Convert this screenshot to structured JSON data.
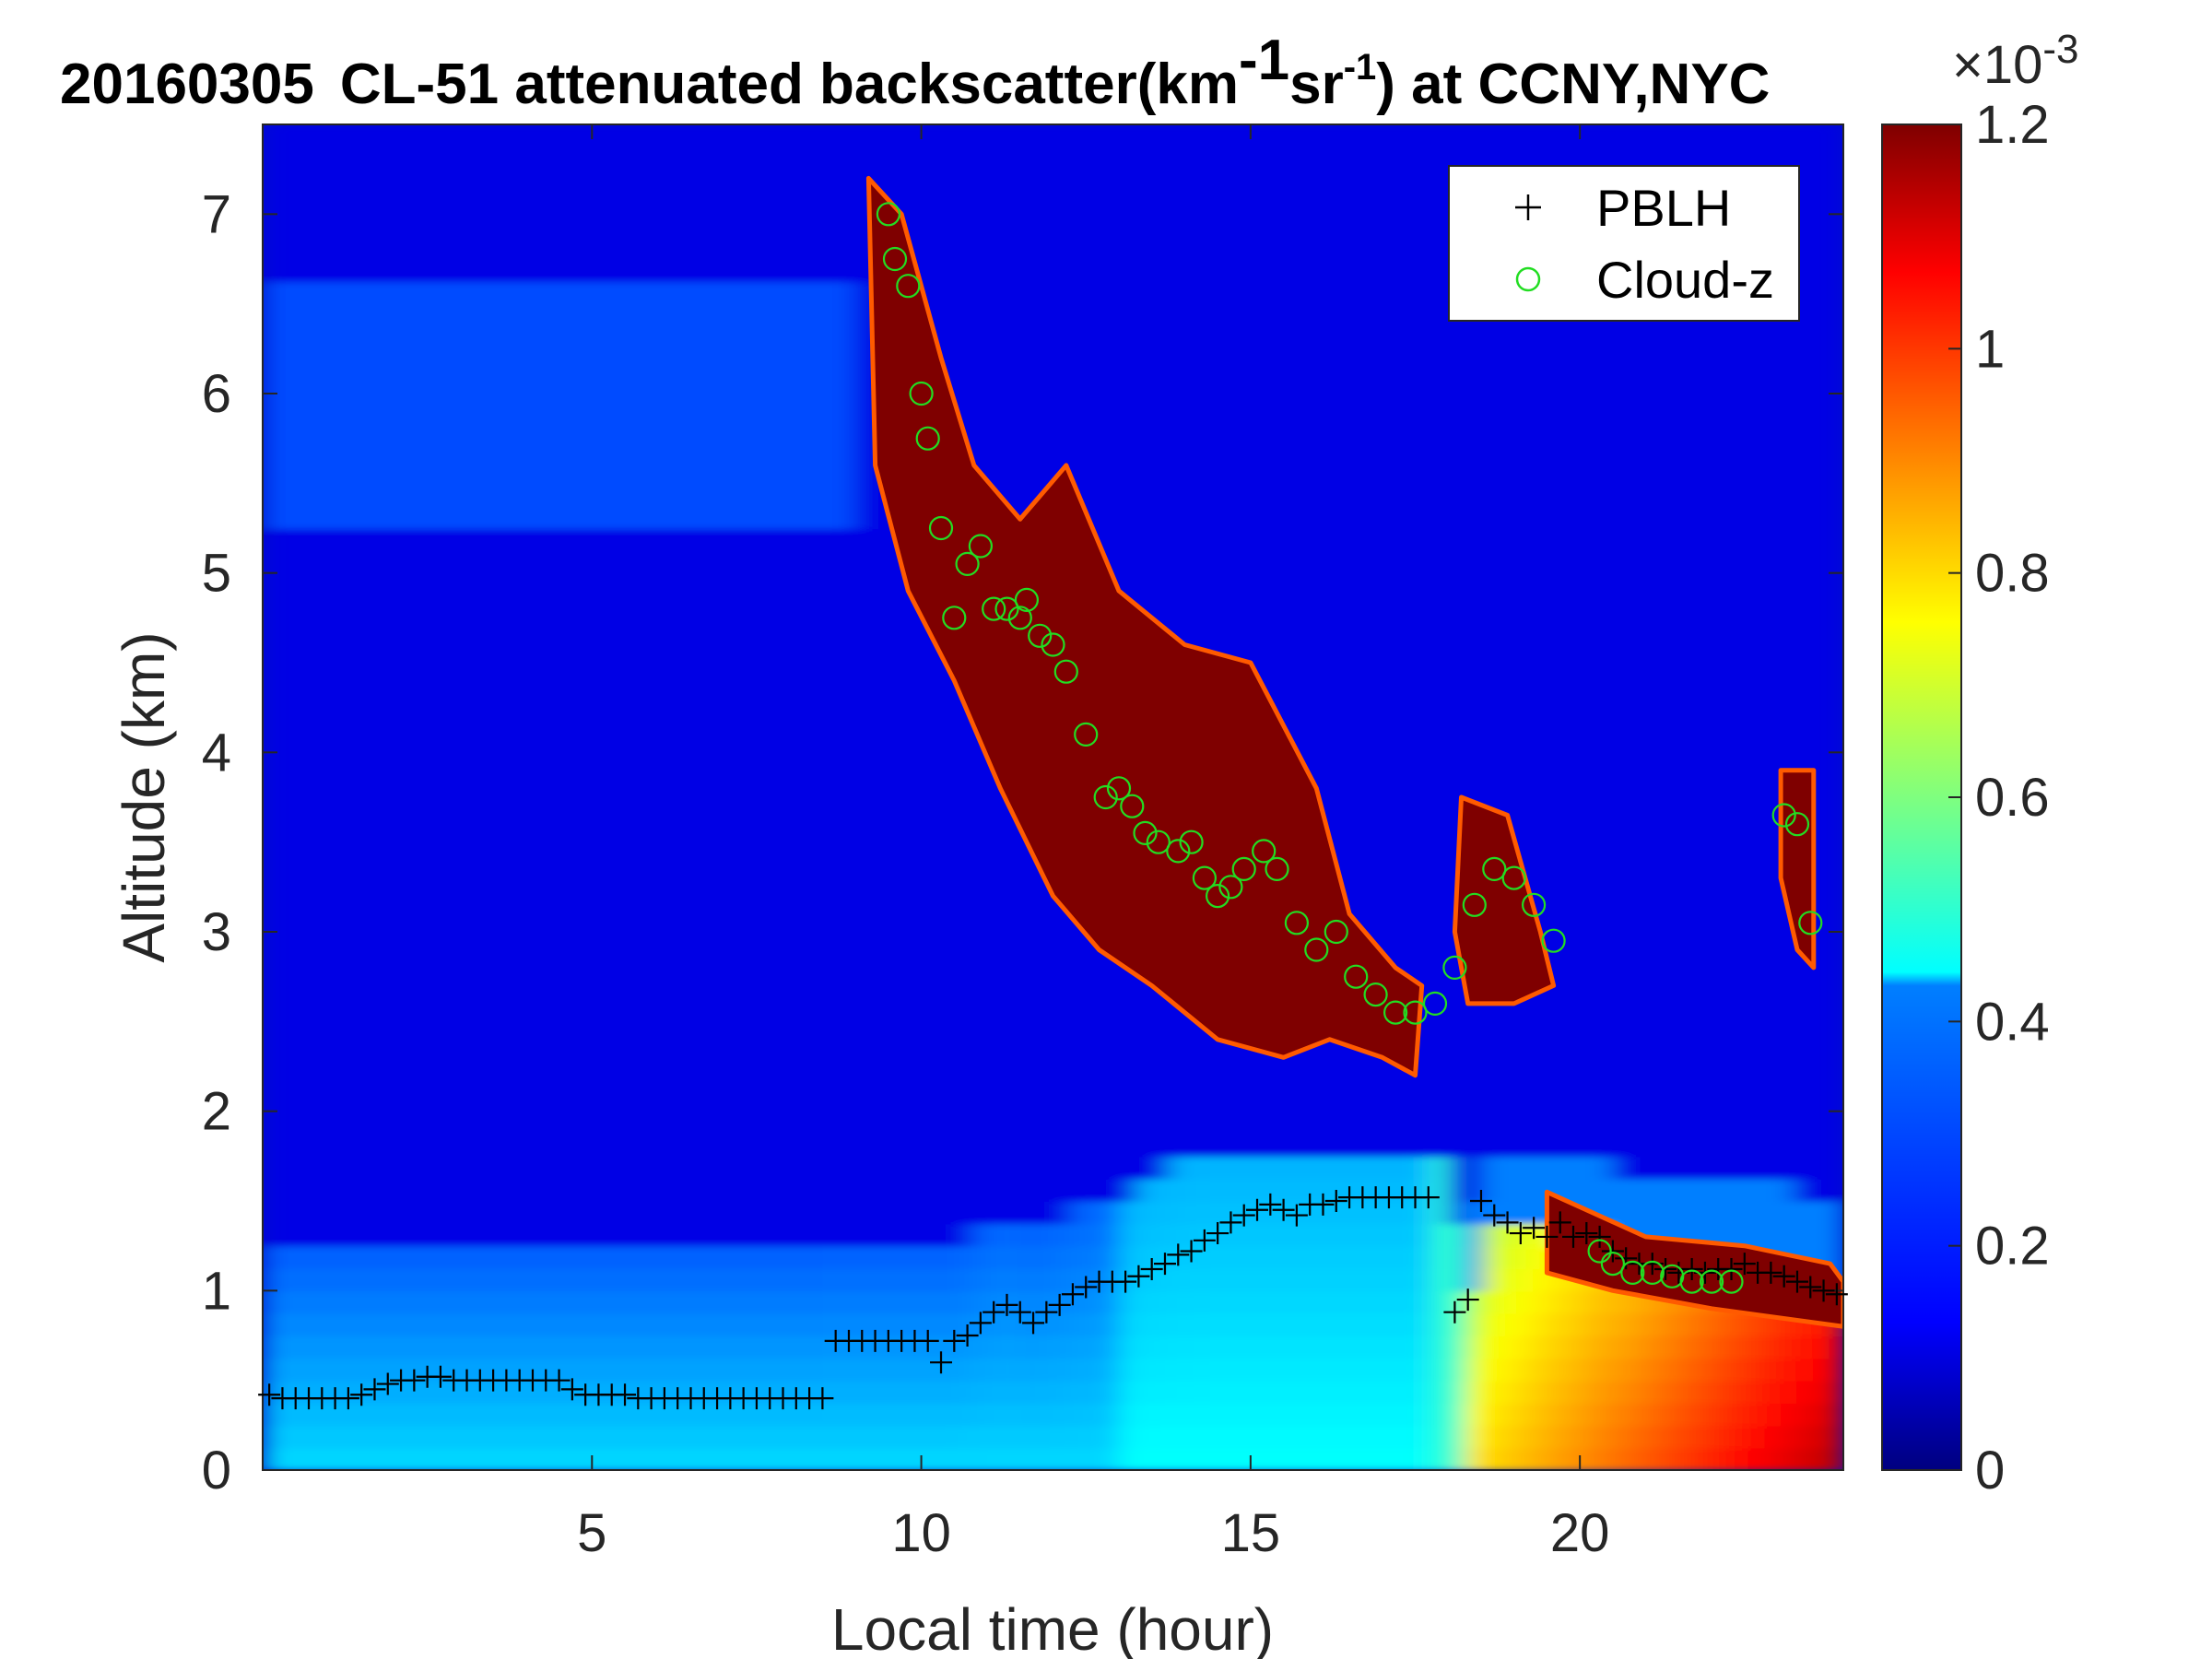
{
  "chart_data": {
    "type": "heatmap",
    "title": {
      "date": "20160305",
      "prefix": "CL-51 attenuated backscatter(km",
      "sup1": "-1",
      "mid": "sr",
      "sup2": "-1",
      "suffix": ") at CCNY,NYC"
    },
    "xlabel": "Local time (hour)",
    "ylabel": "Altitude (km)",
    "xlim": [
      0,
      24
    ],
    "ylim": [
      0,
      7.5
    ],
    "xticks": [
      5,
      10,
      15,
      20
    ],
    "yticks": [
      0,
      1,
      2,
      3,
      4,
      5,
      6,
      7
    ],
    "colorbar": {
      "colormap": "jet",
      "range": [
        0,
        0.0012
      ],
      "ticks": [
        0,
        0.2,
        0.4,
        0.6,
        0.8,
        1,
        1.2
      ],
      "tick_labels": [
        "0",
        "0.2",
        "0.4",
        "0.6",
        "0.8",
        "1",
        "1.2"
      ],
      "exponent": "×10",
      "exponent_power": "-3"
    },
    "colors": {
      "jet_stops": [
        "#00007f",
        "#0000ff",
        "#007fff",
        "#00ffff",
        "#7fff7f",
        "#ffff00",
        "#ff7f00",
        "#ff0000",
        "#7f0000"
      ],
      "pblh_marker": "#000000",
      "cloud_marker": "#22dd22"
    },
    "legend": {
      "placement": "top-right",
      "entries": [
        {
          "label": "PBLH",
          "marker": "plus"
        },
        {
          "label": "Cloud-z",
          "marker": "circle"
        }
      ]
    },
    "series": [
      {
        "name": "PBLH",
        "x": [
          0.1,
          0.3,
          0.5,
          0.7,
          0.9,
          1.1,
          1.3,
          1.5,
          1.7,
          1.9,
          2.1,
          2.3,
          2.5,
          2.7,
          2.9,
          3.1,
          3.3,
          3.5,
          3.7,
          3.9,
          4.1,
          4.3,
          4.5,
          4.7,
          4.9,
          5.1,
          5.3,
          5.5,
          5.7,
          5.9,
          6.1,
          6.3,
          6.5,
          6.7,
          6.9,
          7.1,
          7.3,
          7.5,
          7.7,
          7.9,
          8.1,
          8.3,
          8.5,
          8.7,
          8.9,
          9.1,
          9.3,
          9.5,
          9.7,
          9.9,
          10.1,
          10.3,
          10.5,
          10.7,
          10.9,
          11.1,
          11.3,
          11.5,
          11.7,
          11.9,
          12.1,
          12.3,
          12.5,
          12.7,
          12.9,
          13.1,
          13.3,
          13.5,
          13.7,
          13.9,
          14.1,
          14.3,
          14.5,
          14.7,
          14.9,
          15.1,
          15.3,
          15.5,
          15.7,
          15.9,
          16.1,
          16.3,
          16.5,
          16.7,
          16.9,
          17.1,
          17.3,
          17.5,
          17.7,
          18.1,
          18.3,
          18.5,
          18.7,
          18.9,
          19.1,
          19.3,
          19.5,
          19.7,
          19.9,
          20.1,
          20.3,
          20.5,
          20.7,
          20.9,
          21.1,
          21.3,
          21.5,
          21.7,
          21.9,
          22.1,
          22.3,
          22.5,
          22.7,
          22.9,
          23.1,
          23.3,
          23.5,
          23.7,
          23.9
        ],
        "y": [
          0.42,
          0.4,
          0.4,
          0.4,
          0.4,
          0.4,
          0.4,
          0.42,
          0.45,
          0.48,
          0.5,
          0.5,
          0.52,
          0.52,
          0.5,
          0.5,
          0.5,
          0.5,
          0.5,
          0.5,
          0.5,
          0.5,
          0.5,
          0.45,
          0.42,
          0.42,
          0.42,
          0.42,
          0.4,
          0.4,
          0.4,
          0.4,
          0.4,
          0.4,
          0.4,
          0.4,
          0.4,
          0.4,
          0.4,
          0.4,
          0.4,
          0.4,
          0.4,
          0.72,
          0.72,
          0.72,
          0.72,
          0.72,
          0.72,
          0.72,
          0.72,
          0.6,
          0.72,
          0.75,
          0.82,
          0.88,
          0.92,
          0.88,
          0.82,
          0.88,
          0.92,
          0.98,
          1.02,
          1.05,
          1.05,
          1.05,
          1.08,
          1.12,
          1.15,
          1.2,
          1.22,
          1.28,
          1.32,
          1.38,
          1.42,
          1.45,
          1.48,
          1.45,
          1.42,
          1.48,
          1.48,
          1.5,
          1.52,
          1.52,
          1.52,
          1.52,
          1.52,
          1.52,
          1.52,
          0.88,
          0.95,
          1.5,
          1.42,
          1.38,
          1.32,
          1.35,
          1.3,
          1.38,
          1.3,
          1.32,
          1.3,
          1.22,
          1.18,
          1.15,
          1.15,
          1.12,
          1.1,
          1.12,
          1.1,
          1.12,
          1.12,
          1.15,
          1.1,
          1.1,
          1.08,
          1.05,
          1.02,
          1.0,
          0.98
        ]
      },
      {
        "name": "Cloud-z",
        "x": [
          9.5,
          9.6,
          9.8,
          10.0,
          10.1,
          10.3,
          10.5,
          10.7,
          10.9,
          11.1,
          11.3,
          11.5,
          11.6,
          11.8,
          12.0,
          12.2,
          12.5,
          12.8,
          13.0,
          13.2,
          13.4,
          13.6,
          13.9,
          14.1,
          14.3,
          14.5,
          14.7,
          14.9,
          15.2,
          15.4,
          15.7,
          16.0,
          16.3,
          16.6,
          16.9,
          17.2,
          17.5,
          17.8,
          18.1,
          18.4,
          18.7,
          19.0,
          19.3,
          19.6,
          20.3,
          20.5,
          20.8,
          21.1,
          21.4,
          21.7,
          22.0,
          22.3,
          23.1,
          23.3,
          23.5
        ],
        "y": [
          7.0,
          6.75,
          6.6,
          6.0,
          5.75,
          5.25,
          4.75,
          5.05,
          5.15,
          4.8,
          4.8,
          4.75,
          4.85,
          4.65,
          4.6,
          4.45,
          4.1,
          3.75,
          3.8,
          3.7,
          3.55,
          3.5,
          3.45,
          3.5,
          3.3,
          3.2,
          3.25,
          3.35,
          3.45,
          3.35,
          3.05,
          2.9,
          3.0,
          2.75,
          2.65,
          2.55,
          2.55,
          2.6,
          2.8,
          3.15,
          3.35,
          3.3,
          3.15,
          2.95,
          1.22,
          1.15,
          1.1,
          1.1,
          1.08,
          1.05,
          1.05,
          1.05,
          3.65,
          3.6,
          3.05
        ]
      }
    ]
  }
}
